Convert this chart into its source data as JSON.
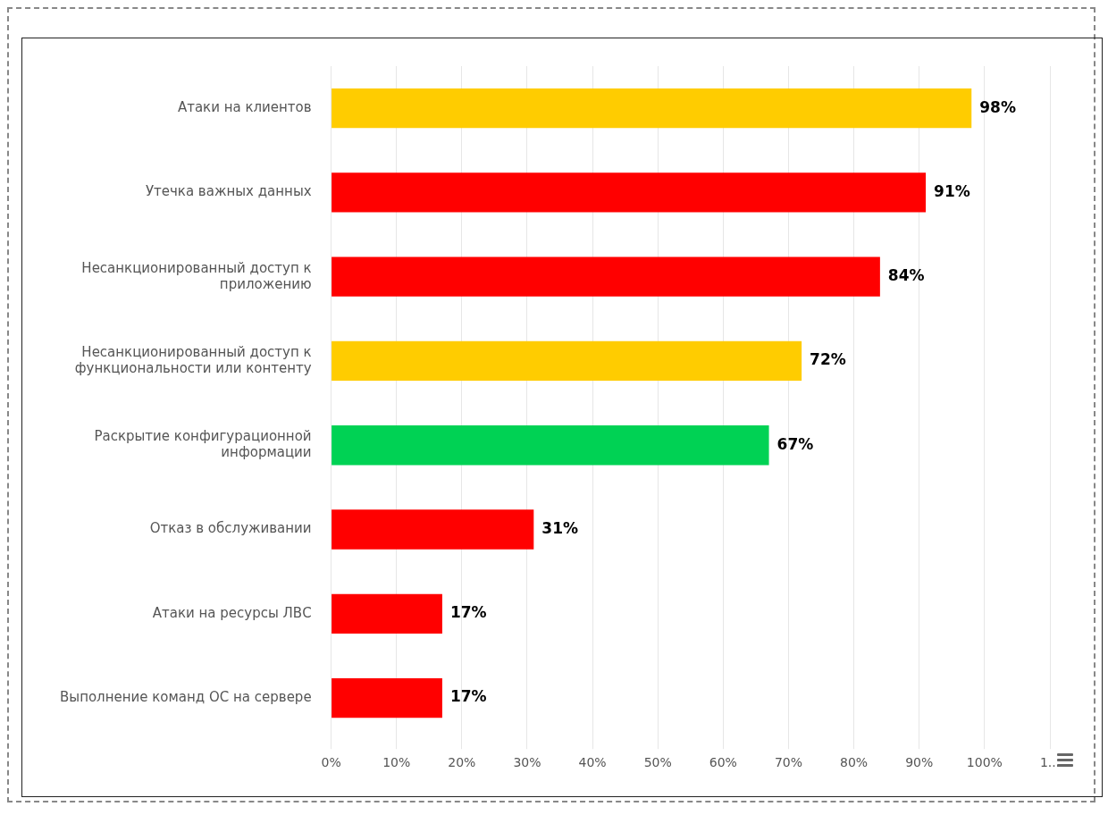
{
  "chart_data": {
    "type": "bar",
    "orientation": "horizontal",
    "categories": [
      "Атаки на клиентов",
      "Утечка важных данных",
      "Несанкционированный доступ к приложению",
      "Несанкционированный доступ к функциональности или контенту",
      "Раскрытие конфигурационной информации",
      "Отказ в обслуживании",
      "Атаки на ресурсы ЛВС",
      "Выполнение команд ОС на сервере"
    ],
    "values": [
      98,
      91,
      84,
      72,
      67,
      31,
      17,
      17
    ],
    "colors": [
      "#ffcc00",
      "#ff0000",
      "#ff0000",
      "#ffcc00",
      "#00d254",
      "#ff0000",
      "#ff0000",
      "#ff0000"
    ],
    "value_labels": [
      "98%",
      "91%",
      "84%",
      "72%",
      "67%",
      "31%",
      "17%",
      "17%"
    ],
    "xlim": [
      0,
      110
    ],
    "xticks": [
      {
        "value": 0,
        "label": "0%"
      },
      {
        "value": 10,
        "label": "10%"
      },
      {
        "value": 20,
        "label": "20%"
      },
      {
        "value": 30,
        "label": "30%"
      },
      {
        "value": 40,
        "label": "40%"
      },
      {
        "value": 50,
        "label": "50%"
      },
      {
        "value": 60,
        "label": "60%"
      },
      {
        "value": 70,
        "label": "70%"
      },
      {
        "value": 80,
        "label": "80%"
      },
      {
        "value": 90,
        "label": "90%"
      },
      {
        "value": 100,
        "label": "100%"
      },
      {
        "value": 110,
        "label": "1..."
      }
    ],
    "grid": "x",
    "legend": false
  }
}
